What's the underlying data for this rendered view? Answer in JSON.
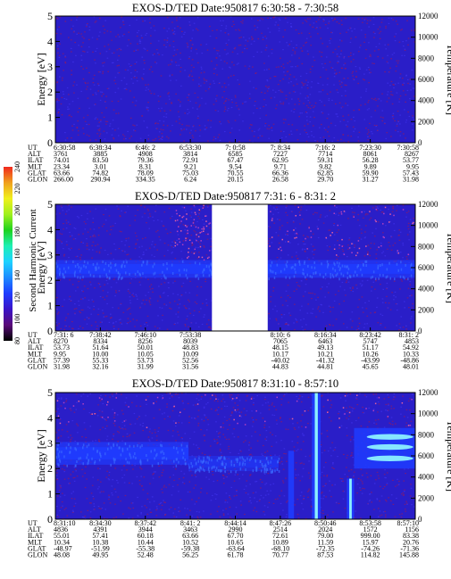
{
  "colors": {
    "spectrogram_bg": "#2a1ec8",
    "spectrogram_noise": "#8a1a6a",
    "band_strong": "#1e3cff",
    "band_hot": "#8cf0ff",
    "background": "#ffffff",
    "text": "#000000"
  },
  "colorbar": {
    "label": "Second Harmonic Current",
    "ticks": [
      "80",
      "100",
      "120",
      "140",
      "160",
      "180",
      "200",
      "220",
      "240"
    ],
    "stops": [
      "#000000",
      "#5a0a7a",
      "#3a14c8",
      "#1e3cff",
      "#1e8cff",
      "#1ed2ff",
      "#1ef0b4",
      "#1ed21e",
      "#a0f01e",
      "#f0f01e",
      "#f0a01e",
      "#f0281e"
    ]
  },
  "row_labels": [
    "UT",
    "ALT",
    "ILAT",
    "MLT",
    "GLAT",
    "GLON"
  ],
  "chart_data": [
    {
      "type": "heatmap",
      "title": "EXOS-D/TED   Date:950817   6:30:58 - 7:30:58",
      "ylabel": "Energy [eV]",
      "ylabel_right": "Temperature [K]",
      "ylim": [
        0,
        5
      ],
      "ylim_right": [
        0,
        12000
      ],
      "yticks": [
        "0",
        "1",
        "2",
        "3",
        "4",
        "5"
      ],
      "yticks_right": [
        "0",
        "2000",
        "4000",
        "6000",
        "8000",
        "10000",
        "12000"
      ],
      "data_gaps": [],
      "features": [],
      "columns": [
        [
          "6:30:58",
          "3761",
          "74.01",
          "23.34",
          "63.66",
          "266.00"
        ],
        [
          "6:38:34",
          "3885",
          "83.50",
          "3.01",
          "74.82",
          "290.94"
        ],
        [
          "6:46: 2",
          "4908",
          "79.36",
          "8.31",
          "78.09",
          "334.35"
        ],
        [
          "6:53:30",
          "3814",
          "72.91",
          "9.21",
          "75.03",
          "6.24"
        ],
        [
          "7: 0:58",
          "6585",
          "67.47",
          "9.54",
          "70.55",
          "20.15"
        ],
        [
          "7: 8:34",
          "7227",
          "62.95",
          "9.71",
          "66.36",
          "26.58"
        ],
        [
          "7:16: 2",
          "7714",
          "59.31",
          "9.82",
          "62.85",
          "29.70"
        ],
        [
          "7:23:30",
          "8061",
          "56.28",
          "9.89",
          "59.90",
          "31.27"
        ],
        [
          "7:30:58",
          "8267",
          "53.77",
          "9.95",
          "57.43",
          "31.98"
        ]
      ]
    },
    {
      "type": "heatmap",
      "title": "EXOS-D/TED   Date:950817  7:31: 6 - 8:31: 2",
      "ylabel": "Energy [eV]",
      "ylabel_right": "Temperature [K]",
      "ylim": [
        0,
        5
      ],
      "ylim_right": [
        0,
        12000
      ],
      "yticks": [
        "0",
        "1",
        "2",
        "3",
        "4",
        "5"
      ],
      "yticks_right": [
        "0",
        "2000",
        "4000",
        "6000",
        "8000",
        "10000",
        "12000"
      ],
      "data_gaps": [
        [
          0.435,
          0.59
        ]
      ],
      "features": [
        {
          "kind": "band",
          "from": 0.0,
          "to": 0.435,
          "center": 2.45,
          "half_width": 0.35,
          "intensity": 0.85
        },
        {
          "kind": "band",
          "from": 0.59,
          "to": 1.0,
          "center": 2.45,
          "half_width": 0.35,
          "intensity": 0.85
        },
        {
          "kind": "dots",
          "from": 0.33,
          "to": 0.43,
          "low": 2.8,
          "high": 5.0
        },
        {
          "kind": "dots",
          "from": 0.59,
          "to": 1.0,
          "low": 3.0,
          "high": 5.0
        }
      ],
      "columns": [
        [
          "7:31: 6",
          "8270",
          "53.73",
          "9.95",
          "57.39",
          "31.98"
        ],
        [
          "7:38:42",
          "8334",
          "51.64",
          "10.00",
          "55.33",
          "32.16"
        ],
        [
          "7:46:10",
          "8256",
          "50.01",
          "10.05",
          "53.73",
          "31.99"
        ],
        [
          "7:53:38",
          "8039",
          "48.83",
          "10.09",
          "52.56",
          "31.56"
        ],
        [
          "",
          "",
          "",
          "",
          "",
          ""
        ],
        [
          "8:10: 6",
          "7065",
          "48.15",
          "10.17",
          "-40.02",
          "44.83"
        ],
        [
          "8:16:34",
          "6463",
          "49.13",
          "10.21",
          "-41.32",
          "44.81"
        ],
        [
          "8:23:42",
          "5747",
          "51.17",
          "10.26",
          "-43.99",
          "45.65"
        ],
        [
          "8:31: 2",
          "4853",
          "54.92",
          "10.33",
          "-48.86",
          "48.01"
        ]
      ]
    },
    {
      "type": "heatmap",
      "title": "EXOS-D/TED   Date:950817   8:31:10 - 8:57:10",
      "ylabel": "Energy [eV]",
      "ylabel_right": "Temperature [K]",
      "ylim": [
        0,
        5
      ],
      "ylim_right": [
        0,
        12000
      ],
      "yticks": [
        "0",
        "1",
        "2",
        "3",
        "4",
        "5"
      ],
      "yticks_right": [
        "0",
        "2000",
        "4000",
        "6000",
        "8000",
        "10000",
        "12000"
      ],
      "data_gaps": [],
      "features": [
        {
          "kind": "band",
          "from": 0.0,
          "to": 0.37,
          "center": 2.6,
          "half_width": 0.45,
          "intensity": 0.85
        },
        {
          "kind": "band",
          "from": 0.37,
          "to": 0.62,
          "center": 2.2,
          "half_width": 0.3,
          "intensity": 0.45
        },
        {
          "kind": "spike",
          "at": 0.725,
          "width": 0.012,
          "low": 0.0,
          "high": 5.0,
          "hot": true
        },
        {
          "kind": "spike",
          "at": 0.655,
          "width": 0.008,
          "low": 0.0,
          "high": 2.7,
          "hot": false
        },
        {
          "kind": "spike",
          "at": 0.82,
          "width": 0.01,
          "low": 0.0,
          "high": 1.6,
          "hot": true
        },
        {
          "kind": "blob",
          "from": 0.83,
          "to": 1.0,
          "low": 2.0,
          "high": 3.6,
          "hot": true
        },
        {
          "kind": "dots",
          "from": 0.0,
          "to": 1.0,
          "low": 3.6,
          "high": 5.0
        }
      ],
      "columns": [
        [
          "8:31:10",
          "4836",
          "55.01",
          "10.34",
          "-48.97",
          "48.08"
        ],
        [
          "8:34:30",
          "4391",
          "57.41",
          "10.38",
          "-51.99",
          "49.95"
        ],
        [
          "8:37:42",
          "3944",
          "60.18",
          "10.44",
          "-55.38",
          "52.48"
        ],
        [
          "8:41: 2",
          "3463",
          "63.66",
          "10.52",
          "-59.38",
          "56.25"
        ],
        [
          "8:44:14",
          "2990",
          "67.70",
          "10.65",
          "-63.64",
          "61.78"
        ],
        [
          "8:47:26",
          "2514",
          "72.61",
          "10.89",
          "-68.10",
          "70.77"
        ],
        [
          "8:50:46",
          "2024",
          "79.00",
          "11.59",
          "-72.35",
          "87.53"
        ],
        [
          "8:53:58",
          "1572",
          "999.00",
          "15.97",
          "-74.26",
          "114.82"
        ],
        [
          "8:57:10",
          "1156",
          "83.38",
          "20.76",
          "-71.36",
          "145.88"
        ]
      ]
    }
  ]
}
